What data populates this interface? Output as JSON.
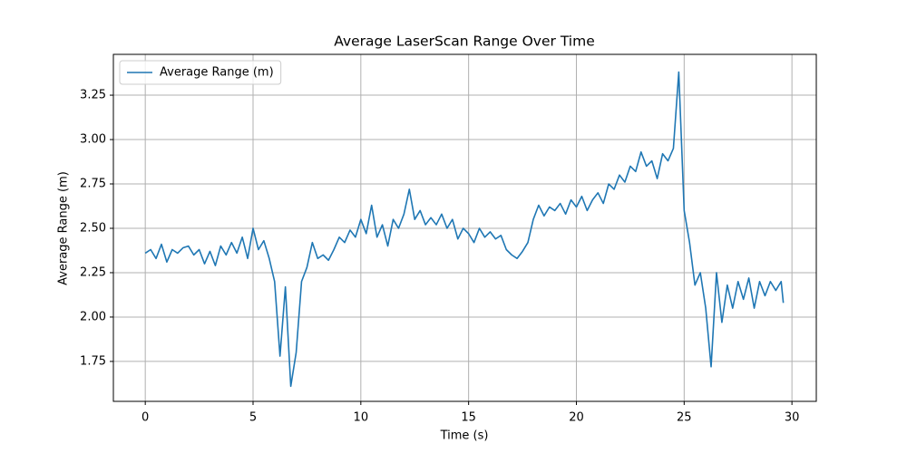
{
  "chart_data": {
    "type": "line",
    "title": "Average LaserScan Range Over Time",
    "x_label": "Time (s)",
    "y_label": "Average Range (m)",
    "x": [
      0,
      0.25,
      0.5,
      0.75,
      1,
      1.25,
      1.5,
      1.75,
      2,
      2.25,
      2.5,
      2.75,
      3,
      3.25,
      3.5,
      3.75,
      4,
      4.25,
      4.5,
      4.75,
      5,
      5.25,
      5.5,
      5.75,
      6,
      6.25,
      6.5,
      6.75,
      7,
      7.25,
      7.5,
      7.75,
      8,
      8.25,
      8.5,
      8.75,
      9,
      9.25,
      9.5,
      9.75,
      10,
      10.25,
      10.5,
      10.75,
      11,
      11.25,
      11.5,
      11.75,
      12,
      12.25,
      12.5,
      12.75,
      13,
      13.25,
      13.5,
      13.75,
      14,
      14.25,
      14.5,
      14.75,
      15,
      15.25,
      15.5,
      15.75,
      16,
      16.25,
      16.5,
      16.75,
      17,
      17.25,
      17.5,
      17.75,
      18,
      18.25,
      18.5,
      18.75,
      19,
      19.25,
      19.5,
      19.75,
      20,
      20.25,
      20.5,
      20.75,
      21,
      21.25,
      21.5,
      21.75,
      22,
      22.25,
      22.5,
      22.75,
      23,
      23.25,
      23.5,
      23.75,
      24,
      24.25,
      24.5,
      24.75,
      25,
      25.25,
      25.5,
      25.75,
      26,
      26.25,
      26.5,
      26.75,
      27,
      27.25,
      27.5,
      27.75,
      28,
      28.25,
      28.5,
      28.75,
      29,
      29.25,
      29.5,
      29.6
    ],
    "series": [
      {
        "name": "Average Range (m)",
        "color": "#1f77b4",
        "values": [
          2.36,
          2.38,
          2.33,
          2.41,
          2.31,
          2.38,
          2.36,
          2.39,
          2.4,
          2.35,
          2.38,
          2.3,
          2.37,
          2.29,
          2.4,
          2.35,
          2.42,
          2.36,
          2.45,
          2.33,
          2.5,
          2.38,
          2.43,
          2.33,
          2.2,
          1.78,
          2.17,
          1.61,
          1.8,
          2.2,
          2.28,
          2.42,
          2.33,
          2.35,
          2.32,
          2.38,
          2.45,
          2.42,
          2.49,
          2.45,
          2.55,
          2.47,
          2.63,
          2.45,
          2.52,
          2.4,
          2.55,
          2.5,
          2.58,
          2.72,
          2.55,
          2.6,
          2.52,
          2.56,
          2.52,
          2.58,
          2.5,
          2.55,
          2.44,
          2.5,
          2.47,
          2.42,
          2.5,
          2.45,
          2.48,
          2.44,
          2.46,
          2.38,
          2.35,
          2.33,
          2.37,
          2.42,
          2.55,
          2.63,
          2.57,
          2.62,
          2.6,
          2.64,
          2.58,
          2.66,
          2.62,
          2.68,
          2.6,
          2.66,
          2.7,
          2.64,
          2.75,
          2.72,
          2.8,
          2.76,
          2.85,
          2.82,
          2.93,
          2.85,
          2.88,
          2.78,
          2.92,
          2.88,
          2.95,
          3.38,
          2.6,
          2.42,
          2.18,
          2.25,
          2.05,
          1.72,
          2.25,
          1.97,
          2.18,
          2.05,
          2.2,
          2.1,
          2.22,
          2.05,
          2.2,
          2.12,
          2.2,
          2.15,
          2.2,
          2.08
        ]
      }
    ],
    "xlim": [
      -1.48,
      31.13
    ],
    "ylim": [
      1.525,
      3.48
    ],
    "xticks": [
      0,
      5,
      10,
      15,
      20,
      25,
      30
    ],
    "yticks": [
      1.75,
      {
        "value": 2.0,
        "label": "2.00"
      },
      2.25,
      {
        "value": 2.5,
        "label": "2.50"
      },
      2.75,
      {
        "value": 3.0,
        "label": "3.00"
      },
      3.25
    ],
    "grid": true,
    "legend": "upper-left"
  }
}
